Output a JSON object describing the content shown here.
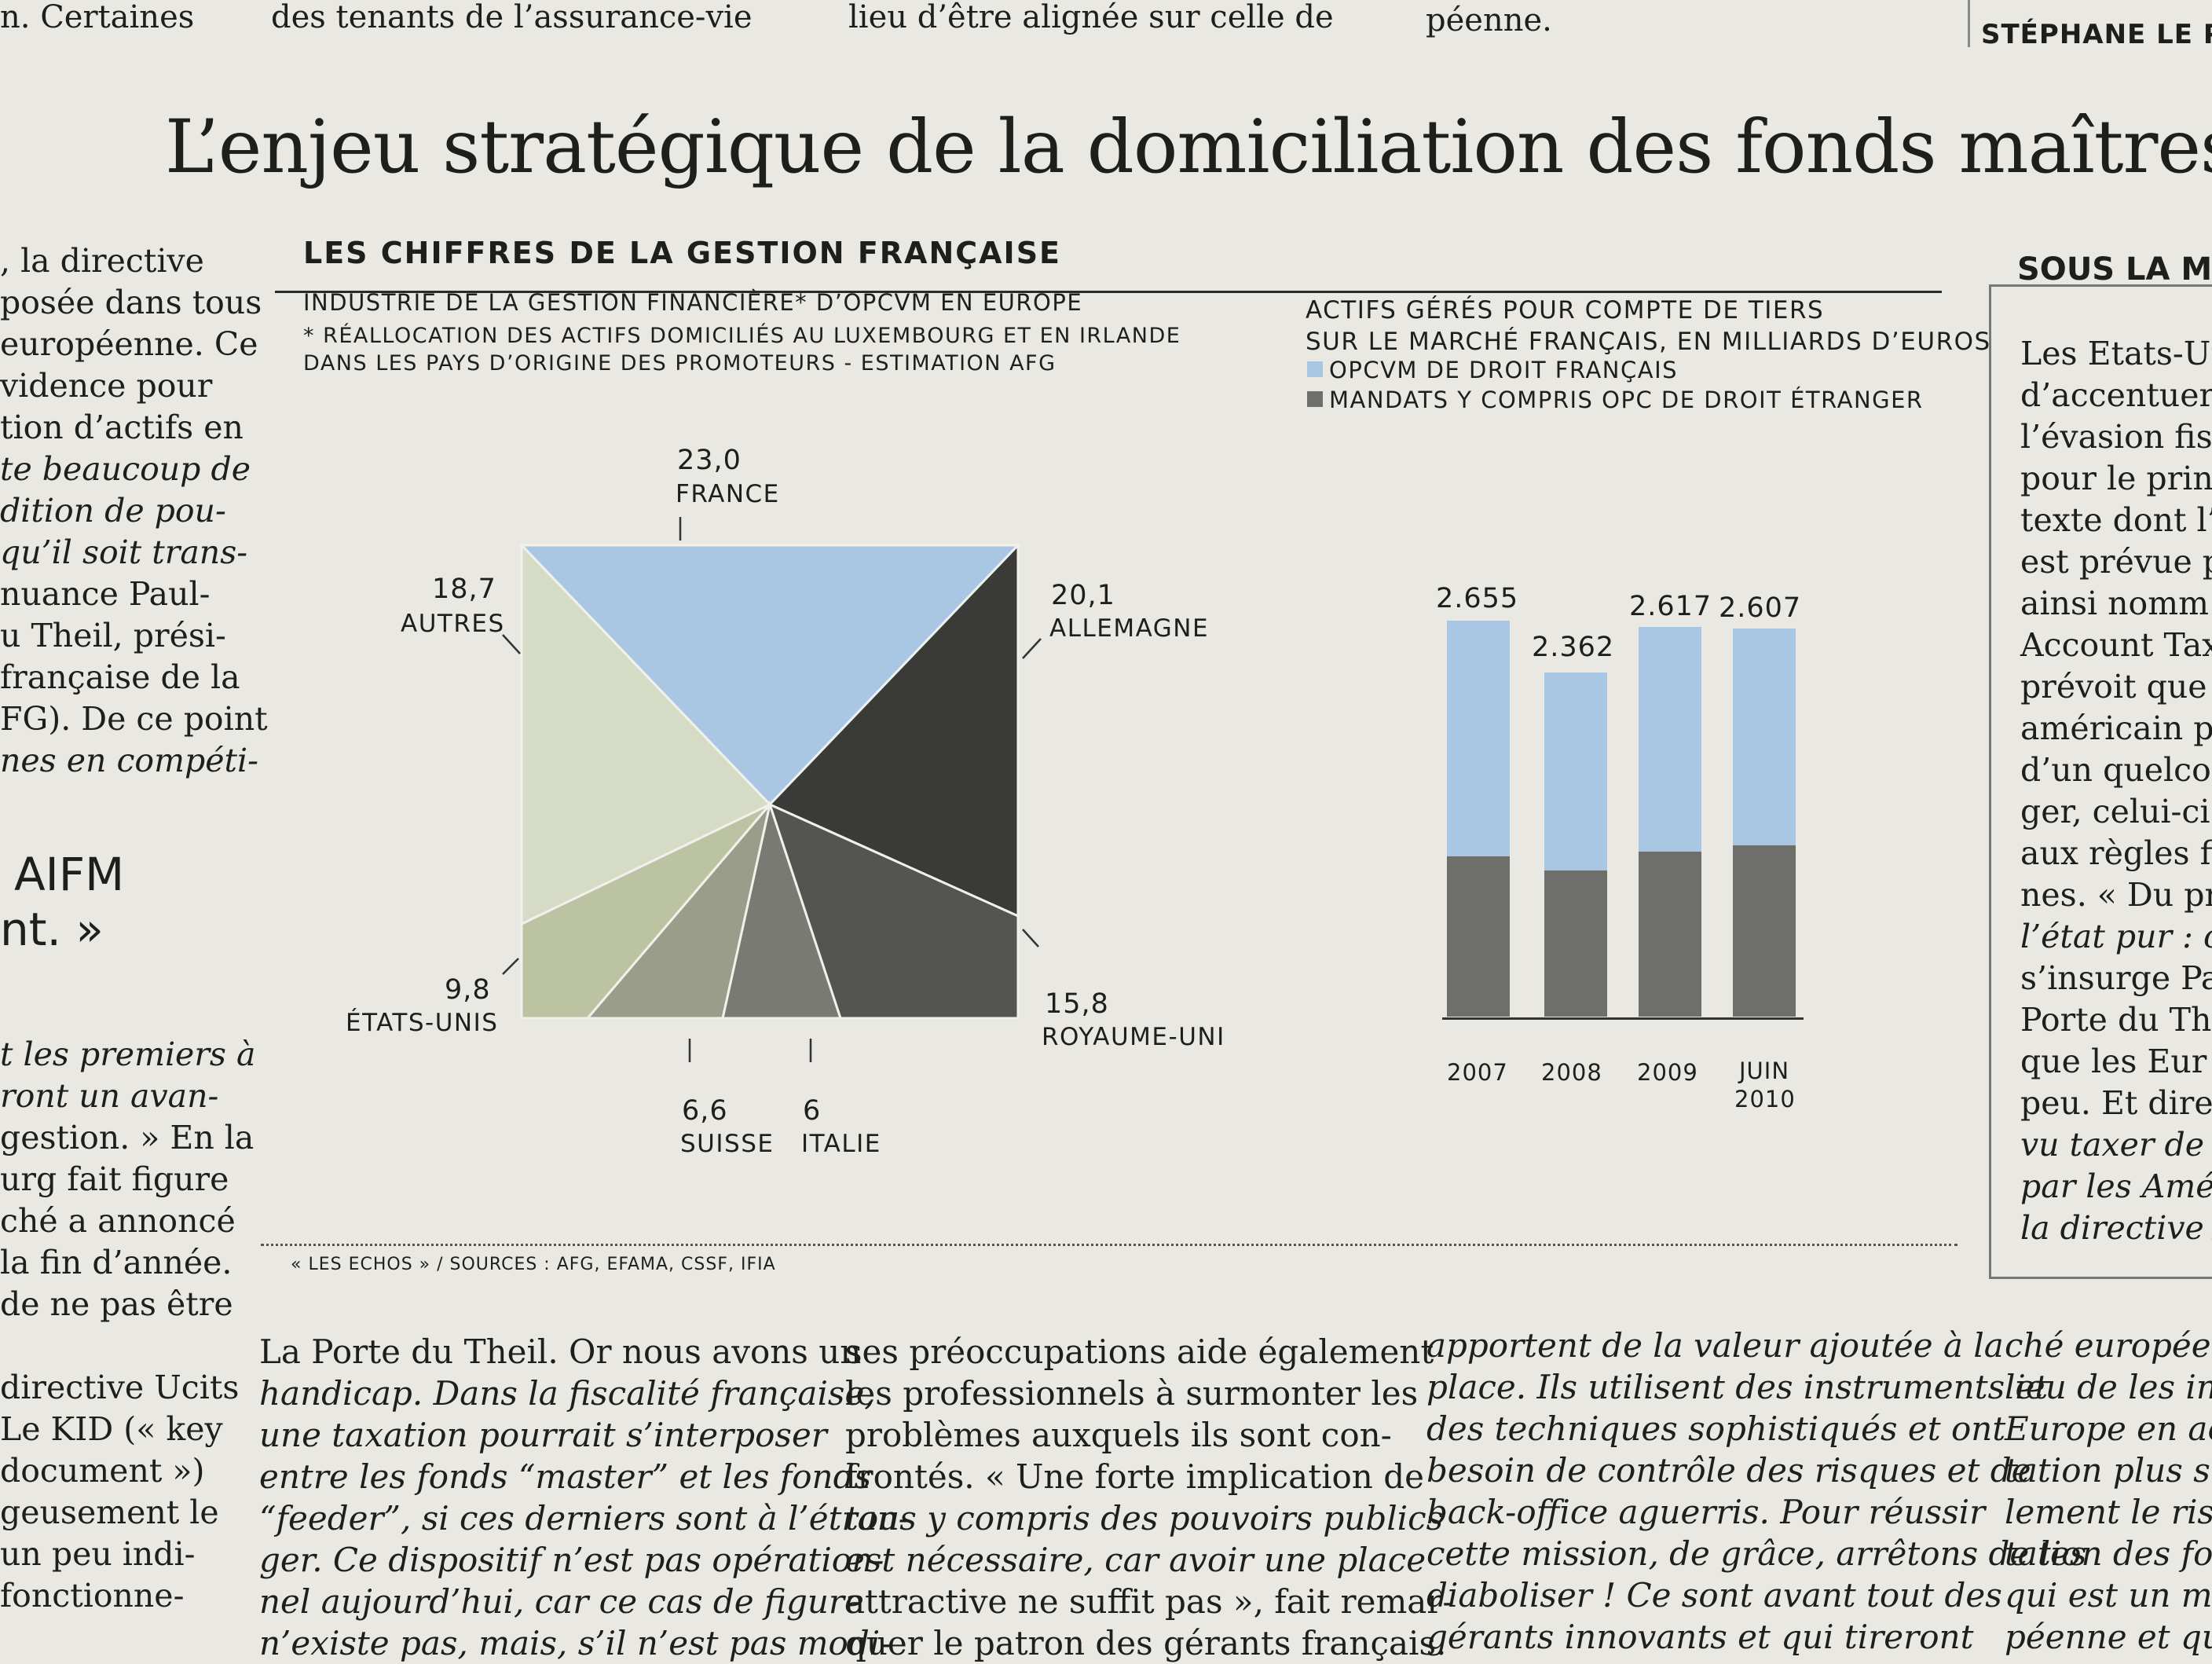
{
  "top_strip": [
    "n. Certaines",
    "des tenants de l’assurance-vie",
    "lieu d’être alignée sur celle de",
    "péenne.",
    "STÉPHANE LE PA"
  ],
  "headline": "L’enjeu stratégique de la domiciliation des fonds maîtres",
  "left_column": [
    ", la directive",
    "posée dans tous",
    "européenne. Ce",
    "vidence pour",
    "tion d’actifs en",
    "te beaucoup de",
    "dition de pou-",
    "qu’il soit trans-",
    "nuance Paul-",
    "u Theil, prési-",
    "française de la",
    "FG). De ce point",
    "nes en compéti-"
  ],
  "left_column_style": [
    "",
    "",
    "",
    "",
    "",
    "it",
    "it",
    "it",
    "",
    "",
    "",
    "mix",
    "it"
  ],
  "aifm": [
    "AIFM",
    "nt. »"
  ],
  "left_column_2": [
    "t les premiers à",
    "ront un avan-",
    "gestion. » En la",
    "urg fait figure",
    "ché a annoncé",
    "la fin d’année.",
    "de ne pas être",
    "",
    "directive Ucits",
    " Le KID (« key",
    " document »)",
    "geusement le",
    " un peu indi-",
    "fonctionne-"
  ],
  "left_column_2_style": [
    "it",
    "it",
    "mix",
    "",
    "",
    "",
    "",
    "",
    "",
    "",
    "",
    "",
    "",
    ""
  ],
  "panel": {
    "title": "LES CHIFFRES DE LA GESTION FRANÇAISE",
    "source": "« LES ECHOS » / SOURCES : AFG, EFAMA, CSSF, IFIA"
  },
  "pie_chart": {
    "subtitle": "INDUSTRIE DE LA GESTION FINANCIÈRE* D’OPCVM EN EUROPE",
    "note_1": "* RÉALLOCATION DES ACTIFS DOMICILIÉS AU LUXEMBOURG ET EN IRLANDE",
    "note_2": "DANS LES PAYS D’ORIGINE DES PROMOTEURS - ESTIMATION AFG",
    "slices": [
      {
        "label": "FRANCE",
        "value": "23,0",
        "color": "#a9c7e2"
      },
      {
        "label": "ALLEMAGNE",
        "value": "20,1",
        "color": "#3a3a38"
      },
      {
        "label": "ROYAUME-UNI",
        "value": "15,8",
        "color": "#545451"
      },
      {
        "label": "ITALIE",
        "value": "6",
        "color": "#7a7a74"
      },
      {
        "label": "SUISSE",
        "value": "6,6",
        "color": "#9a9d8a"
      },
      {
        "label": "ÉTATS-UNIS",
        "value": "9,8",
        "color": "#bcc3a2"
      },
      {
        "label": "AUTRES",
        "value": "18,7",
        "color": "#d6dbc6"
      }
    ]
  },
  "bar_chart": {
    "subtitle_1": "ACTIFS GÉRÉS POUR COMPTE DE TIERS",
    "subtitle_2": "SUR LE MARCHÉ FRANÇAIS, EN MILLIARDS D’EUROS",
    "legend": [
      {
        "label": "OPCVM DE DROIT FRANÇAIS",
        "color": "#a9c7e2"
      },
      {
        "label": "MANDATS Y COMPRIS OPC DE DROIT ÉTRANGER",
        "color": "#6e6e6a"
      }
    ],
    "bars": [
      {
        "total": "2.655",
        "x1": "2007",
        "x2": ""
      },
      {
        "total": "2.362",
        "x1": "2008",
        "x2": ""
      },
      {
        "total": "2.617",
        "x1": "2009",
        "x2": ""
      },
      {
        "total": "2.607",
        "x1": "JUIN",
        "x2": "2010"
      }
    ]
  },
  "side": {
    "title": "SOUS LA ME",
    "lines": [
      "Les Etats-Un",
      "d’accentuer l",
      "l’évasion fisc",
      "pour le print",
      "texte dont l’e",
      "est prévue p",
      "ainsi nomm",
      "Account Tax",
      "prévoit que",
      "américain p",
      "d’un quelco",
      "ger, celui-ci",
      "aux règles fi",
      "nes. « Du pr",
      "l’état pur : c",
      "s’insurge Pa",
      "Porte du Th",
      "que les Eur",
      "peu. Et dire",
      "vu taxer de",
      "par les Amé",
      "la directive A"
    ],
    "styles": [
      "",
      "",
      "",
      "",
      "",
      "",
      "",
      "",
      "",
      "",
      "",
      "",
      "",
      "mix",
      "it",
      "",
      "",
      "",
      "mix",
      "it",
      "it",
      "it"
    ]
  },
  "bottom_columns": [
    [
      "La Porte du Theil. Or nous avons un",
      "handicap. Dans la fiscalité française,",
      "une taxation pourrait s’interposer",
      "entre les fonds “master” et les fonds",
      "“feeder”, si ces derniers sont à l’étran-",
      "ger. Ce dispositif n’est pas opération-",
      "nel aujourd’hui, car ce cas de figure",
      "n’existe pas, mais, s’il n’est pas modi-"
    ],
    [
      "ses préoccupations aide également",
      "les professionnels à surmonter les",
      "problèmes auxquels ils sont con-",
      "frontés. « Une forte implication de",
      "tous y compris des pouvoirs publics",
      "est nécessaire, car avoir une place",
      "attractive ne suffit pas », fait remar-",
      "quer le patron des gérants français."
    ],
    [
      "apportent de la valeur ajoutée à la",
      "place. Ils utilisent des instruments et",
      "des techniques sophistiqués et ont",
      "besoin de contrôle des risques et de",
      "back-office aguerris. Pour réussir",
      "cette mission, de grâce, arrêtons de les",
      "diaboliser ! Ce sont avant tout des",
      "gérants innovants et qui tireront"
    ],
    [
      "ché européen",
      "lieu de les inci",
      "Europe en acc",
      "tation plus stri",
      "lement le risqu",
      "tation des fon",
      "qui est un mo",
      "péenne et que"
    ]
  ],
  "bottom_styles": [
    [
      "mix",
      "it",
      "it",
      "it",
      "it",
      "it",
      "it",
      "it"
    ],
    [
      "",
      "",
      "",
      "mix",
      "it",
      "it",
      "mix",
      ""
    ],
    [
      "it",
      "it",
      "it",
      "it",
      "it",
      "it",
      "it",
      "it"
    ],
    [
      "it",
      "it",
      "it",
      "it",
      "it",
      "it",
      "it",
      "it"
    ]
  ]
}
